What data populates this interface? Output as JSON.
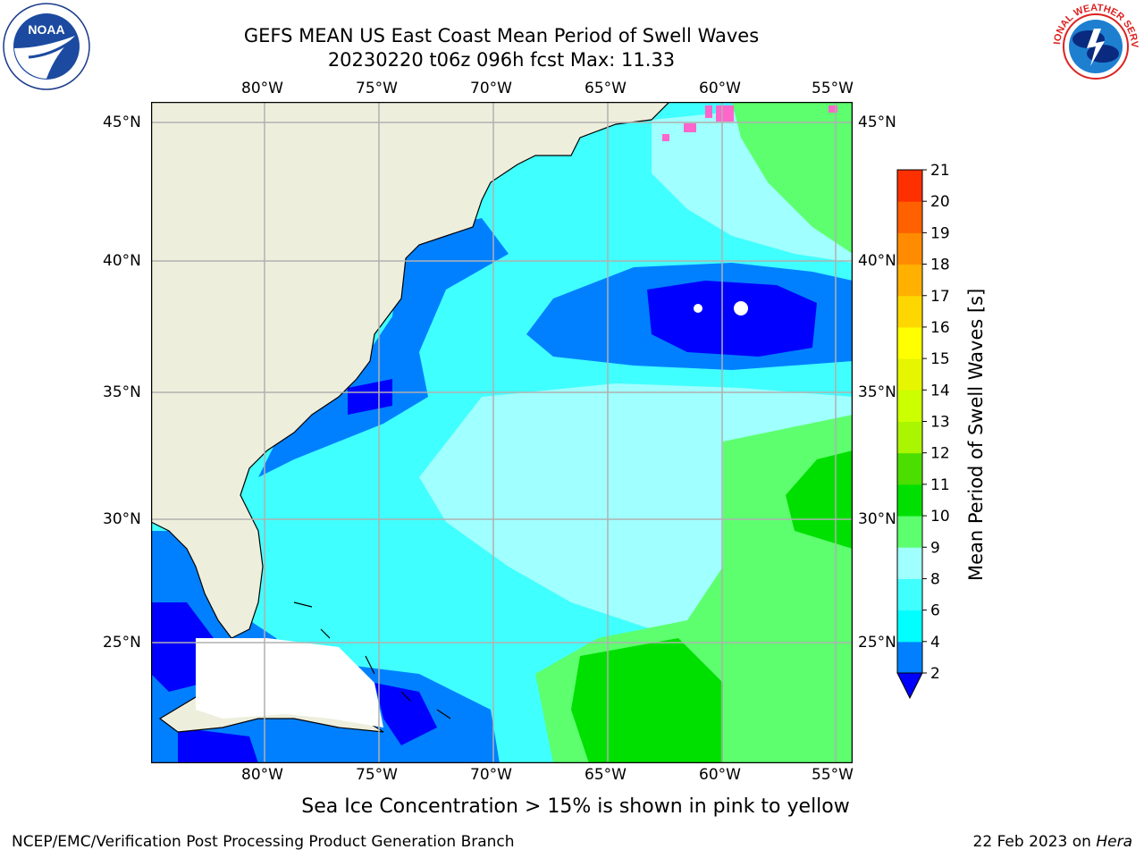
{
  "header": {
    "title_line1": "GEFS MEAN US East Coast Mean Period of Swell Waves",
    "title_line2": "20230220 t06z 096h fcst   Max: 11.33"
  },
  "logos": {
    "left_name": "NOAA",
    "left_ring_text": "NATIONAL OCEANIC AND ATMOSPHERIC ADMINISTRATION · U.S. DEPARTMENT OF COMMERCE",
    "right_ring_text": "NATIONAL WEATHER SERVICE"
  },
  "map": {
    "lon_labels_top": [
      "80°W",
      "75°W",
      "70°W",
      "65°W",
      "60°W",
      "55°W"
    ],
    "lon_labels_bottom": [
      "80°W",
      "75°W",
      "70°W",
      "65°W",
      "60°W",
      "55°W"
    ],
    "lat_labels_left": [
      "45°N",
      "40°N",
      "35°N",
      "30°N",
      "25°N"
    ],
    "lat_labels_right": [
      "45°N",
      "40°N",
      "35°N",
      "30°N",
      "25°N"
    ],
    "colors": {
      "land": "#eeeedd",
      "grid": "#b0b0b0",
      "c2_4": "#0080ff",
      "c4_6": "#00ffff",
      "c6_8": "#40ffff",
      "c8_9": "#a0ffff",
      "c9_10": "#5dff6e",
      "c10_11": "#00e000",
      "c0_2": "#0000ff",
      "ice": "#ff66cc"
    }
  },
  "colorbar": {
    "label": "Mean Period of Swell Waves [s]",
    "ticks": [
      "2",
      "4",
      "6",
      "8",
      "9",
      "10",
      "11",
      "12",
      "13",
      "14",
      "15",
      "16",
      "17",
      "18",
      "19",
      "20",
      "21"
    ],
    "colors": [
      "#0080ff",
      "#00ffff",
      "#40ffff",
      "#a0ffff",
      "#5dff6e",
      "#00e000",
      "#4cde00",
      "#aaf500",
      "#ccff00",
      "#e6f500",
      "#ffff00",
      "#ffd700",
      "#ffb000",
      "#ff8c00",
      "#ff6000",
      "#ff3000",
      "#ff0000"
    ],
    "under_color": "#0000ff"
  },
  "footer": {
    "note": "Sea Ice Concentration > 15% is shown in pink to yellow",
    "left": "NCEP/EMC/Verification Post Processing Product Generation Branch",
    "right_date": "22 Feb 2023 on ",
    "right_host": "Hera"
  }
}
